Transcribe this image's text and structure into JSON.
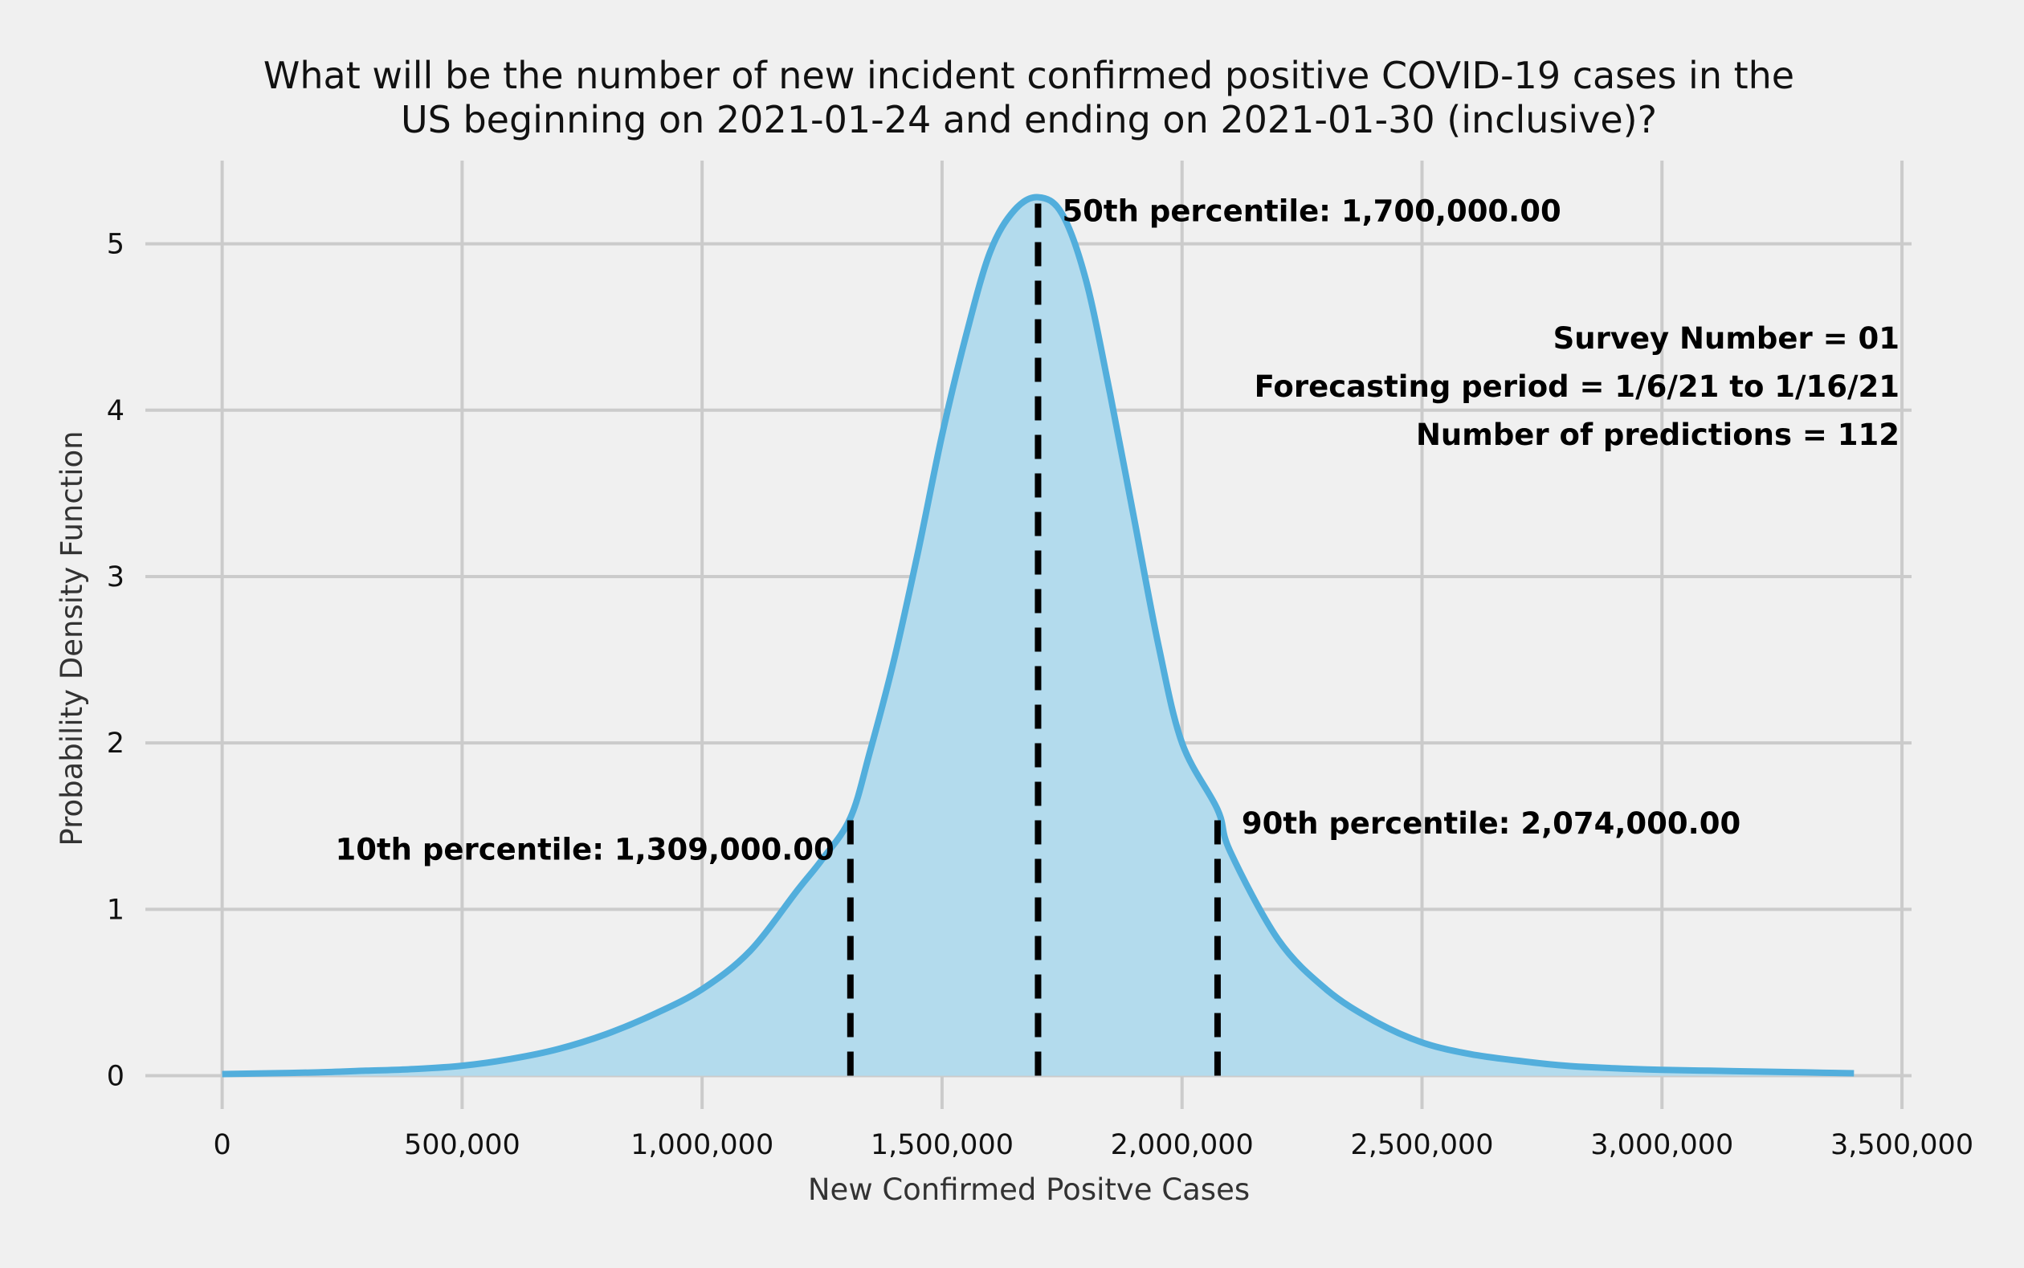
{
  "chart_data": {
    "type": "area",
    "title_lines": [
      "What will be the number of new incident confirmed positive COVID-19 cases in the",
      "US beginning on 2021-01-24 and ending on 2021-01-30 (inclusive)?"
    ],
    "xlabel": "New Confirmed Positve Cases",
    "ylabel": "Probability Density Function",
    "xlim": [
      -160000,
      3520000
    ],
    "ylim": [
      -0.2,
      5.5
    ],
    "grid": true,
    "x_ticks": [
      0,
      500000,
      1000000,
      1500000,
      2000000,
      2500000,
      3000000,
      3500000
    ],
    "x_tick_labels": [
      "0",
      "500,000",
      "1,000,000",
      "1,500,000",
      "2,000,000",
      "2,500,000",
      "3,000,000",
      "3,500,000"
    ],
    "y_ticks": [
      0,
      1,
      2,
      3,
      4,
      5
    ],
    "y_tick_labels": [
      "0",
      "1",
      "2",
      "3",
      "4",
      "5"
    ],
    "series": [
      {
        "color": "#52aedc",
        "fill_color": "#b3dbed",
        "x": [
          0,
          100000,
          200000,
          300000,
          400000,
          500000,
          600000,
          700000,
          800000,
          900000,
          1000000,
          1100000,
          1200000,
          1250000,
          1309000,
          1350000,
          1400000,
          1450000,
          1500000,
          1550000,
          1600000,
          1650000,
          1700000,
          1750000,
          1800000,
          1850000,
          1900000,
          1950000,
          2000000,
          2074000,
          2100000,
          2200000,
          2300000,
          2400000,
          2500000,
          2600000,
          2700000,
          2800000,
          2900000,
          3000000,
          3100000,
          3200000,
          3300000,
          3400000
        ],
        "y": [
          0.01,
          0.015,
          0.02,
          0.03,
          0.04,
          0.06,
          0.1,
          0.16,
          0.25,
          0.37,
          0.52,
          0.75,
          1.12,
          1.3,
          1.55,
          1.95,
          2.5,
          3.15,
          3.85,
          4.45,
          4.95,
          5.2,
          5.28,
          5.18,
          4.78,
          4.1,
          3.35,
          2.6,
          2.0,
          1.6,
          1.35,
          0.82,
          0.52,
          0.33,
          0.2,
          0.13,
          0.09,
          0.06,
          0.045,
          0.035,
          0.03,
          0.025,
          0.02,
          0.015
        ]
      }
    ],
    "percentiles": [
      {
        "value": 1309000,
        "label": "10th percentile: 1,309,000.00",
        "align": "left"
      },
      {
        "value": 1700000,
        "label": "50th percentile: 1,700,000.00",
        "align": "right"
      },
      {
        "value": 2074000,
        "label": "90th percentile: 2,074,000.00",
        "align": "right"
      }
    ],
    "info_lines": [
      "Survey Number = 01",
      "Forecasting period = 1/6/21 to 1/16/21",
      "Number of predictions = 112"
    ],
    "info_placement": "top-right"
  }
}
